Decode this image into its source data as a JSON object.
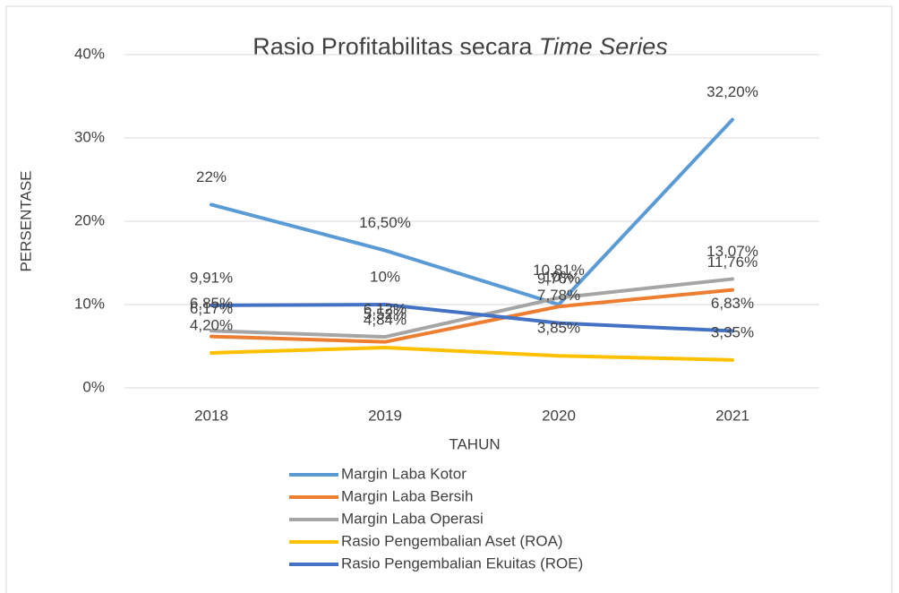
{
  "chart_data": {
    "type": "line",
    "title_parts": [
      "Rasio Profitabilitas secara ",
      "Time Series"
    ],
    "x_label": "TAHUN",
    "y_label": "PERSENTASE",
    "categories": [
      "2018",
      "2019",
      "2020",
      "2021"
    ],
    "ylim": [
      0,
      40
    ],
    "yticks": [
      {
        "value": 0,
        "label": "0%"
      },
      {
        "value": 10,
        "label": "10%"
      },
      {
        "value": 20,
        "label": "20%"
      },
      {
        "value": 30,
        "label": "30%"
      },
      {
        "value": 40,
        "label": "40%"
      }
    ],
    "grid": true,
    "legend": "bottom",
    "series": [
      {
        "name": "Margin Laba Kotor",
        "color": "#5b9bd5",
        "values": [
          22,
          16.5,
          10,
          32.2
        ],
        "value_labels": [
          "22%",
          "16,50%",
          "10%",
          "32,20%"
        ]
      },
      {
        "name": "Margin Laba Bersih",
        "color": "#ed7d31",
        "values": [
          6.17,
          5.52,
          9.76,
          11.76
        ],
        "value_labels": [
          "6,17%",
          "5,52%",
          "9,76%",
          "11,76%"
        ]
      },
      {
        "name": "Margin Laba Operasi",
        "color": "#a5a5a5",
        "values": [
          6.85,
          6.12,
          10.81,
          13.07
        ],
        "value_labels": [
          "6,85%",
          "6,12%",
          "10,81%",
          "13,07%"
        ]
      },
      {
        "name": "Rasio Pengembalian Aset (ROA)",
        "color": "#ffc000",
        "values": [
          4.2,
          4.84,
          3.85,
          3.35
        ],
        "value_labels": [
          "4,20%",
          "4,84%",
          "3,85%",
          "3,35%"
        ]
      },
      {
        "name": "Rasio Pengembalian Ekuitas (ROE)",
        "color": "#4472c4",
        "values": [
          9.91,
          10,
          7.78,
          6.83
        ],
        "value_labels": [
          "9,91%",
          "10%",
          "7,78%",
          "6,83%"
        ]
      }
    ]
  }
}
